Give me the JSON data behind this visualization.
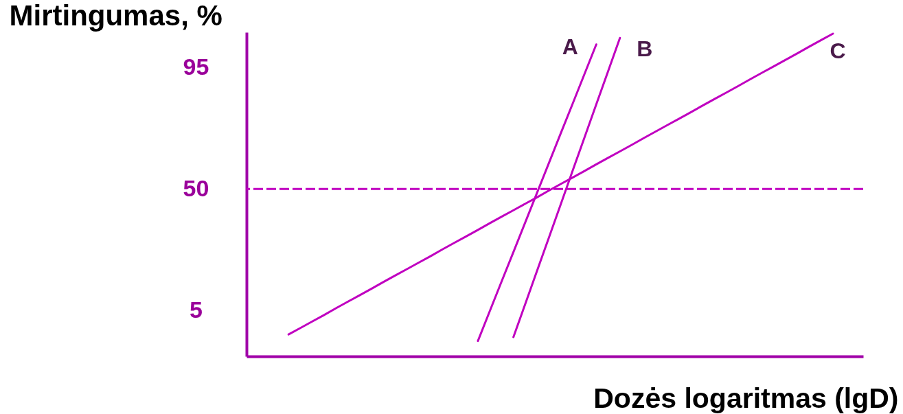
{
  "chart_data": {
    "type": "line",
    "ylabel": "Mirtingumas, %",
    "xlabel": "Dozės logaritmas (lgD)",
    "categories": [
      null,
      null,
      null,
      null,
      null,
      null,
      null,
      null,
      null,
      null,
      null,
      null,
      null,
      null,
      null,
      null,
      null,
      null,
      null,
      null,
      null,
      null,
      null,
      null,
      null,
      null,
      null,
      null,
      null,
      null,
      null,
      null,
      null,
      null,
      null,
      null,
      null,
      null,
      null,
      null,
      null,
      null,
      null,
      null,
      null,
      null,
      null,
      null,
      null,
      null,
      null,
      null
    ],
    "series": [
      {
        "name": "A",
        "color": "#c000c0",
        "values": [
          null,
          null,
          null,
          null,
          null,
          null,
          null,
          null,
          null,
          null,
          null,
          null,
          null,
          null,
          null,
          null,
          null,
          null,
          null,
          -6.3,
          4.7,
          15.7,
          26.6,
          37.6,
          48.6,
          59.6,
          70.6,
          81.5,
          92.5,
          103.5,
          null,
          null,
          null,
          null,
          null,
          null,
          null,
          null,
          null,
          null,
          null,
          null,
          null,
          null,
          null,
          null,
          null,
          null,
          null,
          null,
          null,
          null
        ]
      },
      {
        "name": "B",
        "color": "#c000c0",
        "values": [
          null,
          null,
          null,
          null,
          null,
          null,
          null,
          null,
          null,
          null,
          null,
          null,
          null,
          null,
          null,
          null,
          null,
          null,
          null,
          null,
          null,
          null,
          -4.9,
          7.4,
          19.7,
          32.0,
          44.3,
          56.7,
          69.0,
          81.3,
          93.6,
          105.9,
          null,
          null,
          null,
          null,
          null,
          null,
          null,
          null,
          null,
          null,
          null,
          null,
          null,
          null,
          null,
          null,
          null,
          null,
          null,
          null
        ]
      },
      {
        "name": "C",
        "color": "#c000c0",
        "values": [
          null,
          null,
          null,
          -3.9,
          -1.5,
          0.9,
          3.3,
          5.8,
          8.2,
          10.6,
          13.0,
          15.5,
          17.9,
          20.3,
          22.7,
          25.1,
          27.6,
          30.0,
          32.4,
          34.8,
          37.3,
          39.7,
          42.1,
          44.5,
          46.9,
          49.4,
          51.8,
          54.2,
          56.6,
          59.1,
          61.5,
          63.9,
          66.3,
          68.8,
          71.2,
          73.6,
          76.0,
          78.4,
          80.9,
          83.3,
          85.7,
          88.1,
          90.6,
          93.0,
          95.4,
          97.8,
          100.2,
          102.7,
          105.1,
          107.5,
          null,
          null
        ]
      }
    ],
    "ylim": [
      -12,
      108
    ],
    "yticks": [
      5,
      50,
      95
    ],
    "tick_labels": "y",
    "grid": false,
    "legend": false,
    "ref_lines": [
      {
        "axis": "y",
        "value": 50,
        "color": "#c000c0",
        "line_style": "dashed"
      }
    ]
  }
}
